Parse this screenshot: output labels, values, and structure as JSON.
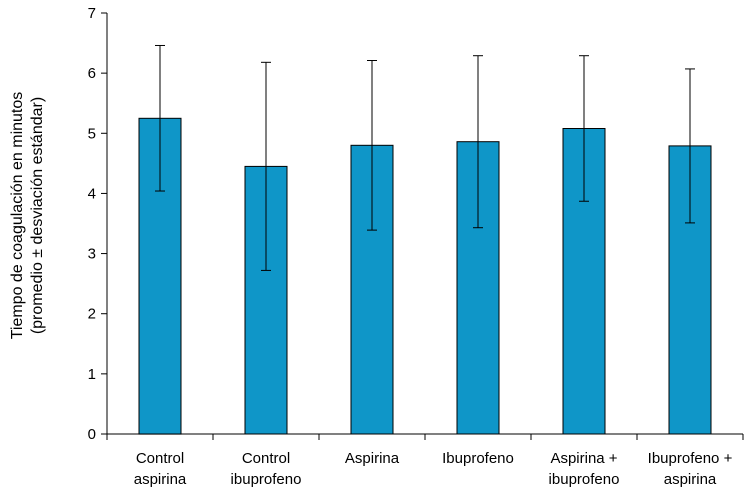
{
  "chart_data": {
    "type": "bar",
    "categories": [
      [
        "Control",
        "aspirina"
      ],
      [
        "Control",
        "ibuprofeno"
      ],
      [
        "Aspirina"
      ],
      [
        "Ibuprofeno"
      ],
      [
        "Aspirina +",
        "ibuprofeno"
      ],
      [
        "Ibuprofeno +",
        "aspirina"
      ]
    ],
    "values": [
      5.25,
      4.45,
      4.8,
      4.86,
      5.08,
      4.79
    ],
    "error_bars": [
      1.21,
      1.73,
      1.41,
      1.43,
      1.21,
      1.28
    ],
    "ylabel_lines": [
      "Tiempo de coagulación en minutos",
      "(promedio ± desviación estándar)"
    ],
    "xlabel": "",
    "title": "",
    "ylim": [
      0,
      7
    ],
    "yticks": [
      "0",
      "1",
      "2",
      "3",
      "4",
      "5",
      "6",
      "7"
    ],
    "grid": false,
    "legend": "none",
    "bar_color": "#0f96c8",
    "bar_edge_color": "#000000",
    "error_bar_color": "#000000"
  }
}
